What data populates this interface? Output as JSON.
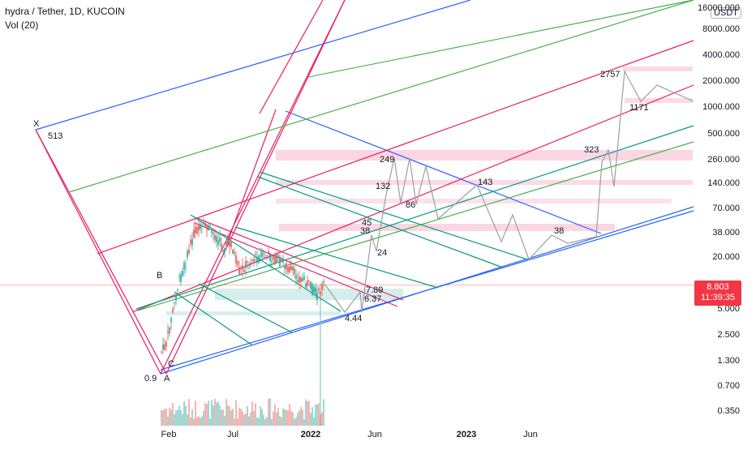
{
  "legend": {
    "symbol": "hydra / Tether, 1D, KUCOIN",
    "indicator": "Vol (20)"
  },
  "price_axis": {
    "unit": "USDT",
    "labels": [
      "16000.000",
      "8000.000",
      "4000.000",
      "2000.000",
      "1000.000",
      "500.000",
      "260.000",
      "140.000",
      "70.000",
      "38.000",
      "20.000",
      "10.000",
      "5.000",
      "2.500",
      "1.300",
      "0.700",
      "0.350"
    ],
    "current_price": "8.803",
    "countdown": "11:39:35"
  },
  "time_axis": {
    "labels": [
      "Feb",
      "Jul",
      "2022",
      "Jun",
      "2023",
      "Jun"
    ]
  },
  "pattern_points": [
    "X",
    "513",
    "A",
    "B",
    "C",
    "0.9"
  ],
  "annotations": [
    "2757",
    "1171",
    "323",
    "249",
    "143",
    "132",
    "86",
    "45",
    "38",
    "24",
    "38",
    "7.89",
    "6.37",
    "4.44"
  ],
  "colors": {
    "blue": "#2962ff",
    "green": "#4caf50",
    "red": "#e91e63",
    "teal": "#089981",
    "up": "#26a69a",
    "down": "#ef5350",
    "forecast": "#9e9e9e",
    "current_price": "#f23645"
  }
}
